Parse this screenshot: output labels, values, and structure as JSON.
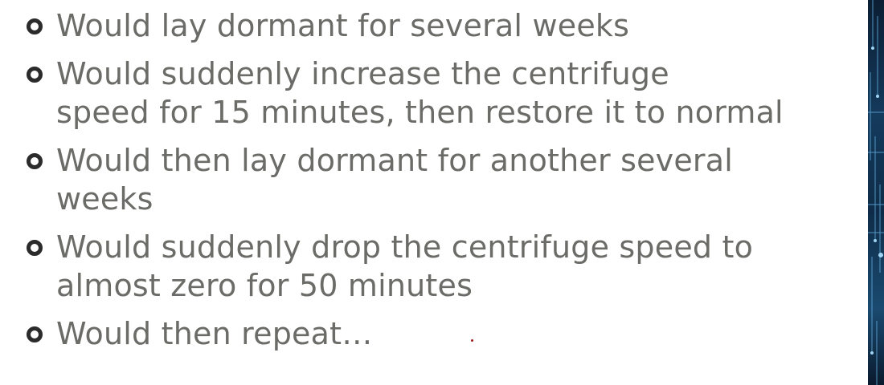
{
  "slide": {
    "bullets": [
      {
        "lines": [
          "Would lay dormant for several weeks"
        ]
      },
      {
        "lines": [
          "Would suddenly increase the centrifuge",
          "speed for 15 minutes, then restore it to normal"
        ]
      },
      {
        "lines": [
          "Would then lay dormant for another several",
          "weeks"
        ]
      },
      {
        "lines": [
          "Would suddenly drop the centrifuge speed to",
          "almost zero for 50 minutes"
        ]
      },
      {
        "lines": [
          "Would then repeat…"
        ]
      }
    ]
  },
  "colors": {
    "text": "#6b6b68",
    "bullet": "#2b2b2b",
    "strip": "#143a5c"
  }
}
